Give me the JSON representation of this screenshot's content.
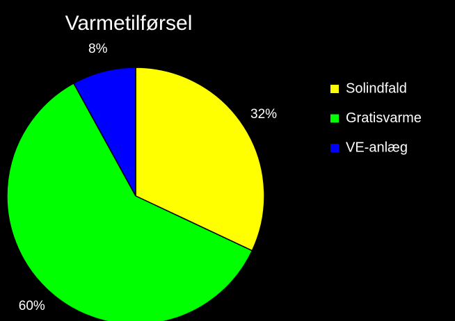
{
  "chart_data": {
    "type": "pie",
    "title": "Varmetilførsel",
    "categories": [
      "Solindfald",
      "Gratisvarme",
      "VE-anlæg"
    ],
    "values": [
      32,
      60,
      8
    ],
    "value_labels": [
      "32%",
      "60%",
      "8%"
    ],
    "colors": [
      "#ffff00",
      "#00ff00",
      "#0000ff"
    ],
    "legend": "right"
  }
}
